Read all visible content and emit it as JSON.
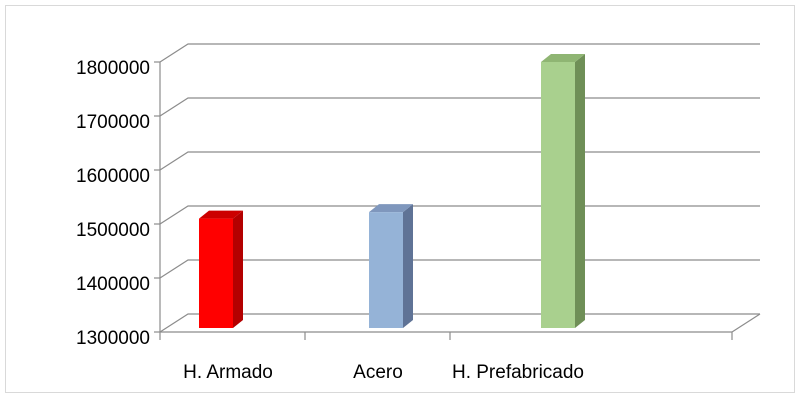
{
  "chart_data": {
    "type": "bar",
    "categories": [
      "H. Armado",
      "Acero",
      "H. Prefabricado"
    ],
    "values": [
      1510000,
      1522000,
      1800000
    ],
    "colors": [
      "#ff0000",
      "#95b3d7",
      "#a9d08e"
    ],
    "side_colors": [
      "#b30000",
      "#5f7396",
      "#6f8f57"
    ],
    "top_colors": [
      "#cc0000",
      "#7f97bd",
      "#8fb573"
    ],
    "ylim": [
      1300000,
      1800000
    ],
    "yticks": [
      "1300000",
      "1400000",
      "1500000",
      "1600000",
      "1700000",
      "1800000"
    ],
    "grid": true,
    "legend": "none",
    "style": "3d-column"
  }
}
